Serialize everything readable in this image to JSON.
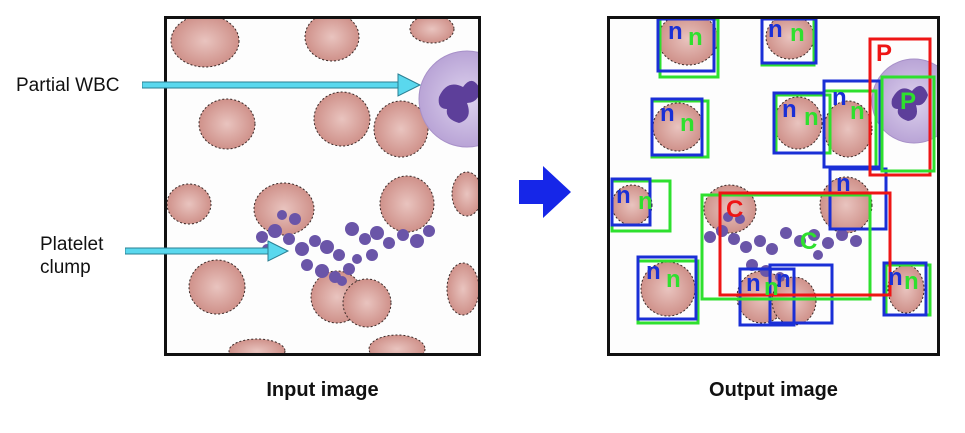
{
  "annotations": {
    "partial_wbc": "Partial WBC",
    "platelet_clump_line1": "Platelet",
    "platelet_clump_line2": "clump"
  },
  "captions": {
    "input": "Input image",
    "output": "Output image"
  },
  "detection_labels": {
    "normal_gt": "n",
    "normal_pred": "n",
    "partial_gt": "P",
    "partial_pred": "P",
    "clump_gt": "C",
    "clump_pred": "C"
  },
  "colors": {
    "cell_arrow": "#5ad8ee",
    "transform_arrow": "#1626e8",
    "box_normal_pred": "#1a2fd6",
    "box_normal_gt": "#2ee02e",
    "box_partial": "#ee1515",
    "rbc_fill": "#d79f98",
    "wbc_fill": "#c6b6dd",
    "platelet": "#6a55a8"
  }
}
